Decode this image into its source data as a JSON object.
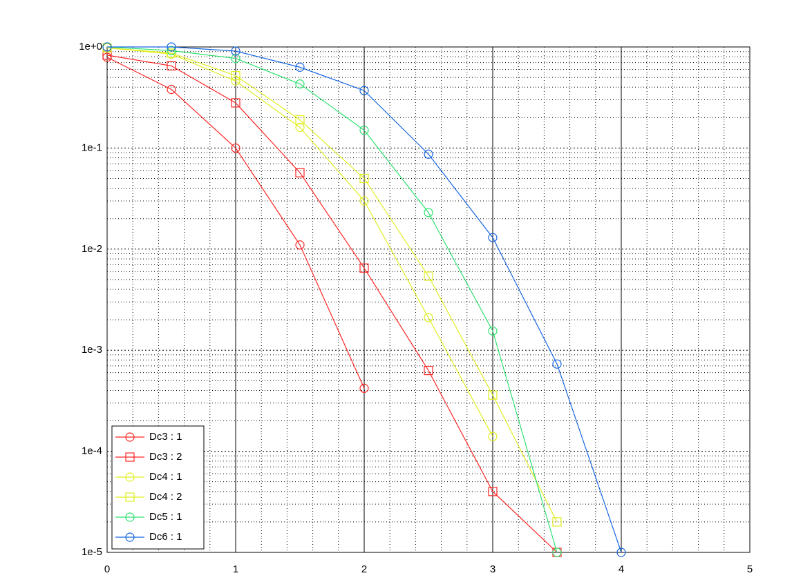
{
  "chart_data": {
    "type": "line",
    "log_scale_y": true,
    "grid": true,
    "minor_grid": true,
    "legend_position": "lower left",
    "xlim": [
      0,
      5
    ],
    "xticks": [
      0,
      1,
      2,
      3,
      4,
      5
    ],
    "ylim": [
      1e-05,
      1
    ],
    "yticks": [
      {
        "value": 1e-05,
        "label": "1e-5"
      },
      {
        "value": 0.0001,
        "label": "1e-4"
      },
      {
        "value": 0.001,
        "label": "1e-3"
      },
      {
        "value": 0.01,
        "label": "1e-2"
      },
      {
        "value": 0.1,
        "label": "1e-1"
      },
      {
        "value": 1,
        "label": "1e+0"
      }
    ],
    "series": [
      {
        "name": "Dc3 : 1",
        "color": "#ff2424",
        "marker": "circle",
        "x": [
          0,
          0.5,
          1,
          1.5,
          2
        ],
        "values": [
          0.79,
          0.38,
          0.1,
          0.011,
          0.00042
        ]
      },
      {
        "name": "Dc3 : 2",
        "color": "#ff2424",
        "marker": "square",
        "x": [
          0,
          0.5,
          1,
          1.5,
          2,
          2.5,
          3,
          3.5
        ],
        "values": [
          0.83,
          0.65,
          0.28,
          0.057,
          0.0065,
          0.00063,
          4e-05,
          1e-05
        ]
      },
      {
        "name": "Dc4 : 1",
        "color": "#dfee1e",
        "marker": "circle",
        "x": [
          0,
          0.5,
          1,
          1.5,
          2,
          2.5,
          3
        ],
        "values": [
          0.98,
          0.85,
          0.46,
          0.16,
          0.03,
          0.0021,
          0.00014
        ]
      },
      {
        "name": "Dc4 : 2",
        "color": "#dfee1e",
        "marker": "square",
        "x": [
          0,
          0.5,
          1,
          1.5,
          2,
          2.5,
          3,
          3.5
        ],
        "values": [
          0.98,
          0.87,
          0.52,
          0.19,
          0.05,
          0.0054,
          0.00036,
          2e-05
        ]
      },
      {
        "name": "Dc5 : 1",
        "color": "#2ee070",
        "marker": "circle",
        "x": [
          0,
          0.5,
          1,
          1.5,
          2,
          2.5,
          3,
          3.5
        ],
        "values": [
          1,
          0.92,
          0.77,
          0.43,
          0.15,
          0.023,
          0.00155,
          1e-05
        ]
      },
      {
        "name": "Dc6 : 1",
        "color": "#1463e0",
        "marker": "circle",
        "x": [
          0,
          0.5,
          1,
          1.5,
          2,
          2.5,
          3,
          3.5,
          4
        ],
        "values": [
          1,
          1,
          0.91,
          0.63,
          0.37,
          0.087,
          0.013,
          0.00073,
          1e-05
        ]
      }
    ]
  }
}
